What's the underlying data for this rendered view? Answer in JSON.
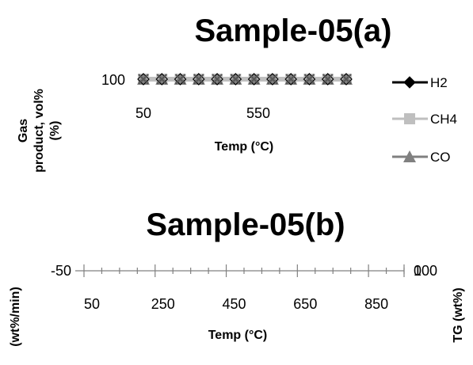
{
  "chart_data": [
    {
      "type": "line",
      "title": "Sample-05(a)",
      "xlabel": "Temp (°C)",
      "ylabel_line1": "Gas",
      "ylabel_line2": "product, vol%",
      "ylabel_line3": "(%)",
      "x_ticks": [
        "50",
        "550"
      ],
      "y_ticks": [
        "100"
      ],
      "legend_position": "right",
      "colors": {
        "H2": "#000000",
        "CH4": "#bfbfbf",
        "CO": "#808080",
        "marker_x": "#555555"
      },
      "series": [
        {
          "name": "H2",
          "marker": "diamond"
        },
        {
          "name": "CH4",
          "marker": "square"
        },
        {
          "name": "CO",
          "marker": "triangle"
        }
      ],
      "marker_count": 12
    },
    {
      "type": "line",
      "title": "Sample-05(b)",
      "xlabel": "Temp (°C)",
      "ylabel_left": "(wt%/min)",
      "ylabel_right": "TG (wt%)",
      "x_ticks": [
        "50",
        "250",
        "450",
        "650",
        "850"
      ],
      "y_ticks_left": [
        "-50"
      ],
      "y_ticks_right": [
        "0",
        "100"
      ],
      "xlim": [
        50,
        950
      ],
      "minor_ticks_per_major": 4,
      "colors": {
        "axis": "#808080"
      }
    }
  ]
}
